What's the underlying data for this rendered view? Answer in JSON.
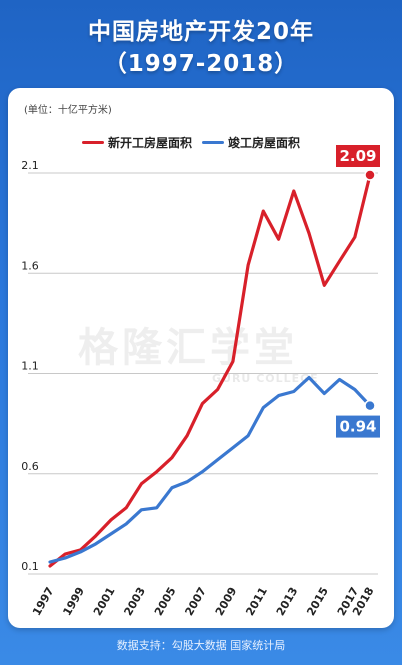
{
  "title_line1": "中国房地产开发20年",
  "title_line2": "（1997-2018）",
  "unit_label": "(单位：十亿平方米)",
  "watermark": "格隆汇学堂",
  "watermark_sub": "GURU COLLEGE",
  "source": "数据支持：勾股大数据 国家统计局",
  "colors": {
    "new": "#d8202a",
    "done": "#3a78d0",
    "bg": "#2b78dc"
  },
  "chart_data": {
    "type": "line",
    "x": [
      1997,
      1998,
      1999,
      2000,
      2001,
      2002,
      2003,
      2004,
      2005,
      2006,
      2007,
      2008,
      2009,
      2010,
      2011,
      2012,
      2013,
      2014,
      2015,
      2016,
      2017,
      2018
    ],
    "x_tick_labels": [
      "1997",
      "1999",
      "2001",
      "2003",
      "2005",
      "2007",
      "2009",
      "2011",
      "2013",
      "2015",
      "2017",
      "2018"
    ],
    "y_ticks": [
      0.1,
      0.6,
      1.1,
      1.6,
      2.1
    ],
    "y_tick_labels": [
      "0.1",
      "0.6",
      "1.1",
      "1.6",
      "2.1"
    ],
    "ylim": [
      0.1,
      2.1
    ],
    "grid": true,
    "legend_position": "top-center",
    "series": [
      {
        "name": "新开工房屋面积",
        "color": "#d8202a",
        "values": [
          0.14,
          0.2,
          0.22,
          0.29,
          0.37,
          0.43,
          0.55,
          0.61,
          0.68,
          0.79,
          0.95,
          1.02,
          1.16,
          1.64,
          1.91,
          1.77,
          2.01,
          1.8,
          1.54,
          1.66,
          1.78,
          2.09
        ]
      },
      {
        "name": "竣工房屋面积",
        "color": "#3a78d0",
        "values": [
          0.16,
          0.18,
          0.21,
          0.25,
          0.3,
          0.35,
          0.42,
          0.43,
          0.53,
          0.56,
          0.61,
          0.67,
          0.73,
          0.79,
          0.93,
          0.99,
          1.01,
          1.08,
          1.0,
          1.07,
          1.02,
          0.94
        ]
      }
    ],
    "annotations": [
      {
        "series": 0,
        "label": "2.09"
      },
      {
        "series": 1,
        "label": "0.94"
      }
    ]
  }
}
